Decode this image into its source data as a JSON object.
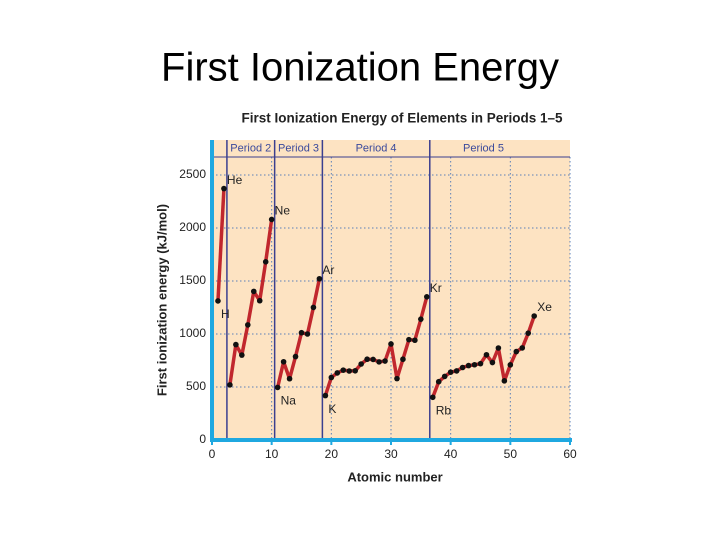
{
  "slide_title": "First Ionization Energy",
  "chart_data": {
    "type": "line",
    "title": "First Ionization Energy of Elements in Periods 1–5",
    "x_label": "Atomic number",
    "y_label": "First ionization energy (kJ/mol)",
    "x": [
      1,
      2,
      3,
      4,
      5,
      6,
      7,
      8,
      9,
      10,
      11,
      12,
      13,
      14,
      15,
      16,
      17,
      18,
      19,
      20,
      21,
      22,
      23,
      24,
      25,
      26,
      27,
      28,
      29,
      30,
      31,
      32,
      33,
      34,
      35,
      36,
      37,
      38,
      39,
      40,
      41,
      42,
      43,
      44,
      45,
      46,
      47,
      48,
      49,
      50,
      51,
      52,
      53,
      54
    ],
    "values": [
      1312,
      2372,
      520,
      900,
      801,
      1086,
      1402,
      1314,
      1681,
      2081,
      496,
      738,
      578,
      787,
      1012,
      1000,
      1251,
      1521,
      419,
      590,
      633,
      659,
      651,
      653,
      717,
      762,
      760,
      737,
      745,
      906,
      579,
      762,
      947,
      941,
      1140,
      1351,
      403,
      550,
      600,
      640,
      652,
      684,
      702,
      710,
      720,
      804,
      731,
      868,
      558,
      709,
      834,
      869,
      1008,
      1170
    ],
    "point_labels": [
      "H",
      "He",
      null,
      null,
      null,
      null,
      null,
      null,
      null,
      "Ne",
      "Na",
      null,
      null,
      null,
      null,
      null,
      null,
      "Ar",
      "K",
      null,
      null,
      null,
      null,
      null,
      null,
      null,
      null,
      null,
      null,
      null,
      null,
      null,
      null,
      null,
      null,
      "Kr",
      "Rb",
      null,
      null,
      null,
      null,
      null,
      null,
      null,
      null,
      null,
      null,
      null,
      null,
      null,
      null,
      null,
      null,
      "Xe"
    ],
    "periods": [
      {
        "label": "Period 2",
        "start": 2.5,
        "end": 10.5
      },
      {
        "label": "Period 3",
        "start": 10.5,
        "end": 18.5
      },
      {
        "label": "Period 4",
        "start": 18.5,
        "end": 36.5
      },
      {
        "label": "Period 5",
        "start": 36.5,
        "end": 54.5
      }
    ],
    "color": "#c1272d",
    "xlim": [
      0,
      60
    ],
    "xticks": [
      0,
      10,
      20,
      30,
      40,
      50,
      60
    ],
    "ylim": [
      0,
      2670
    ],
    "yticks": [
      0,
      500,
      1000,
      1500,
      2000,
      2500
    ],
    "grid": true
  }
}
